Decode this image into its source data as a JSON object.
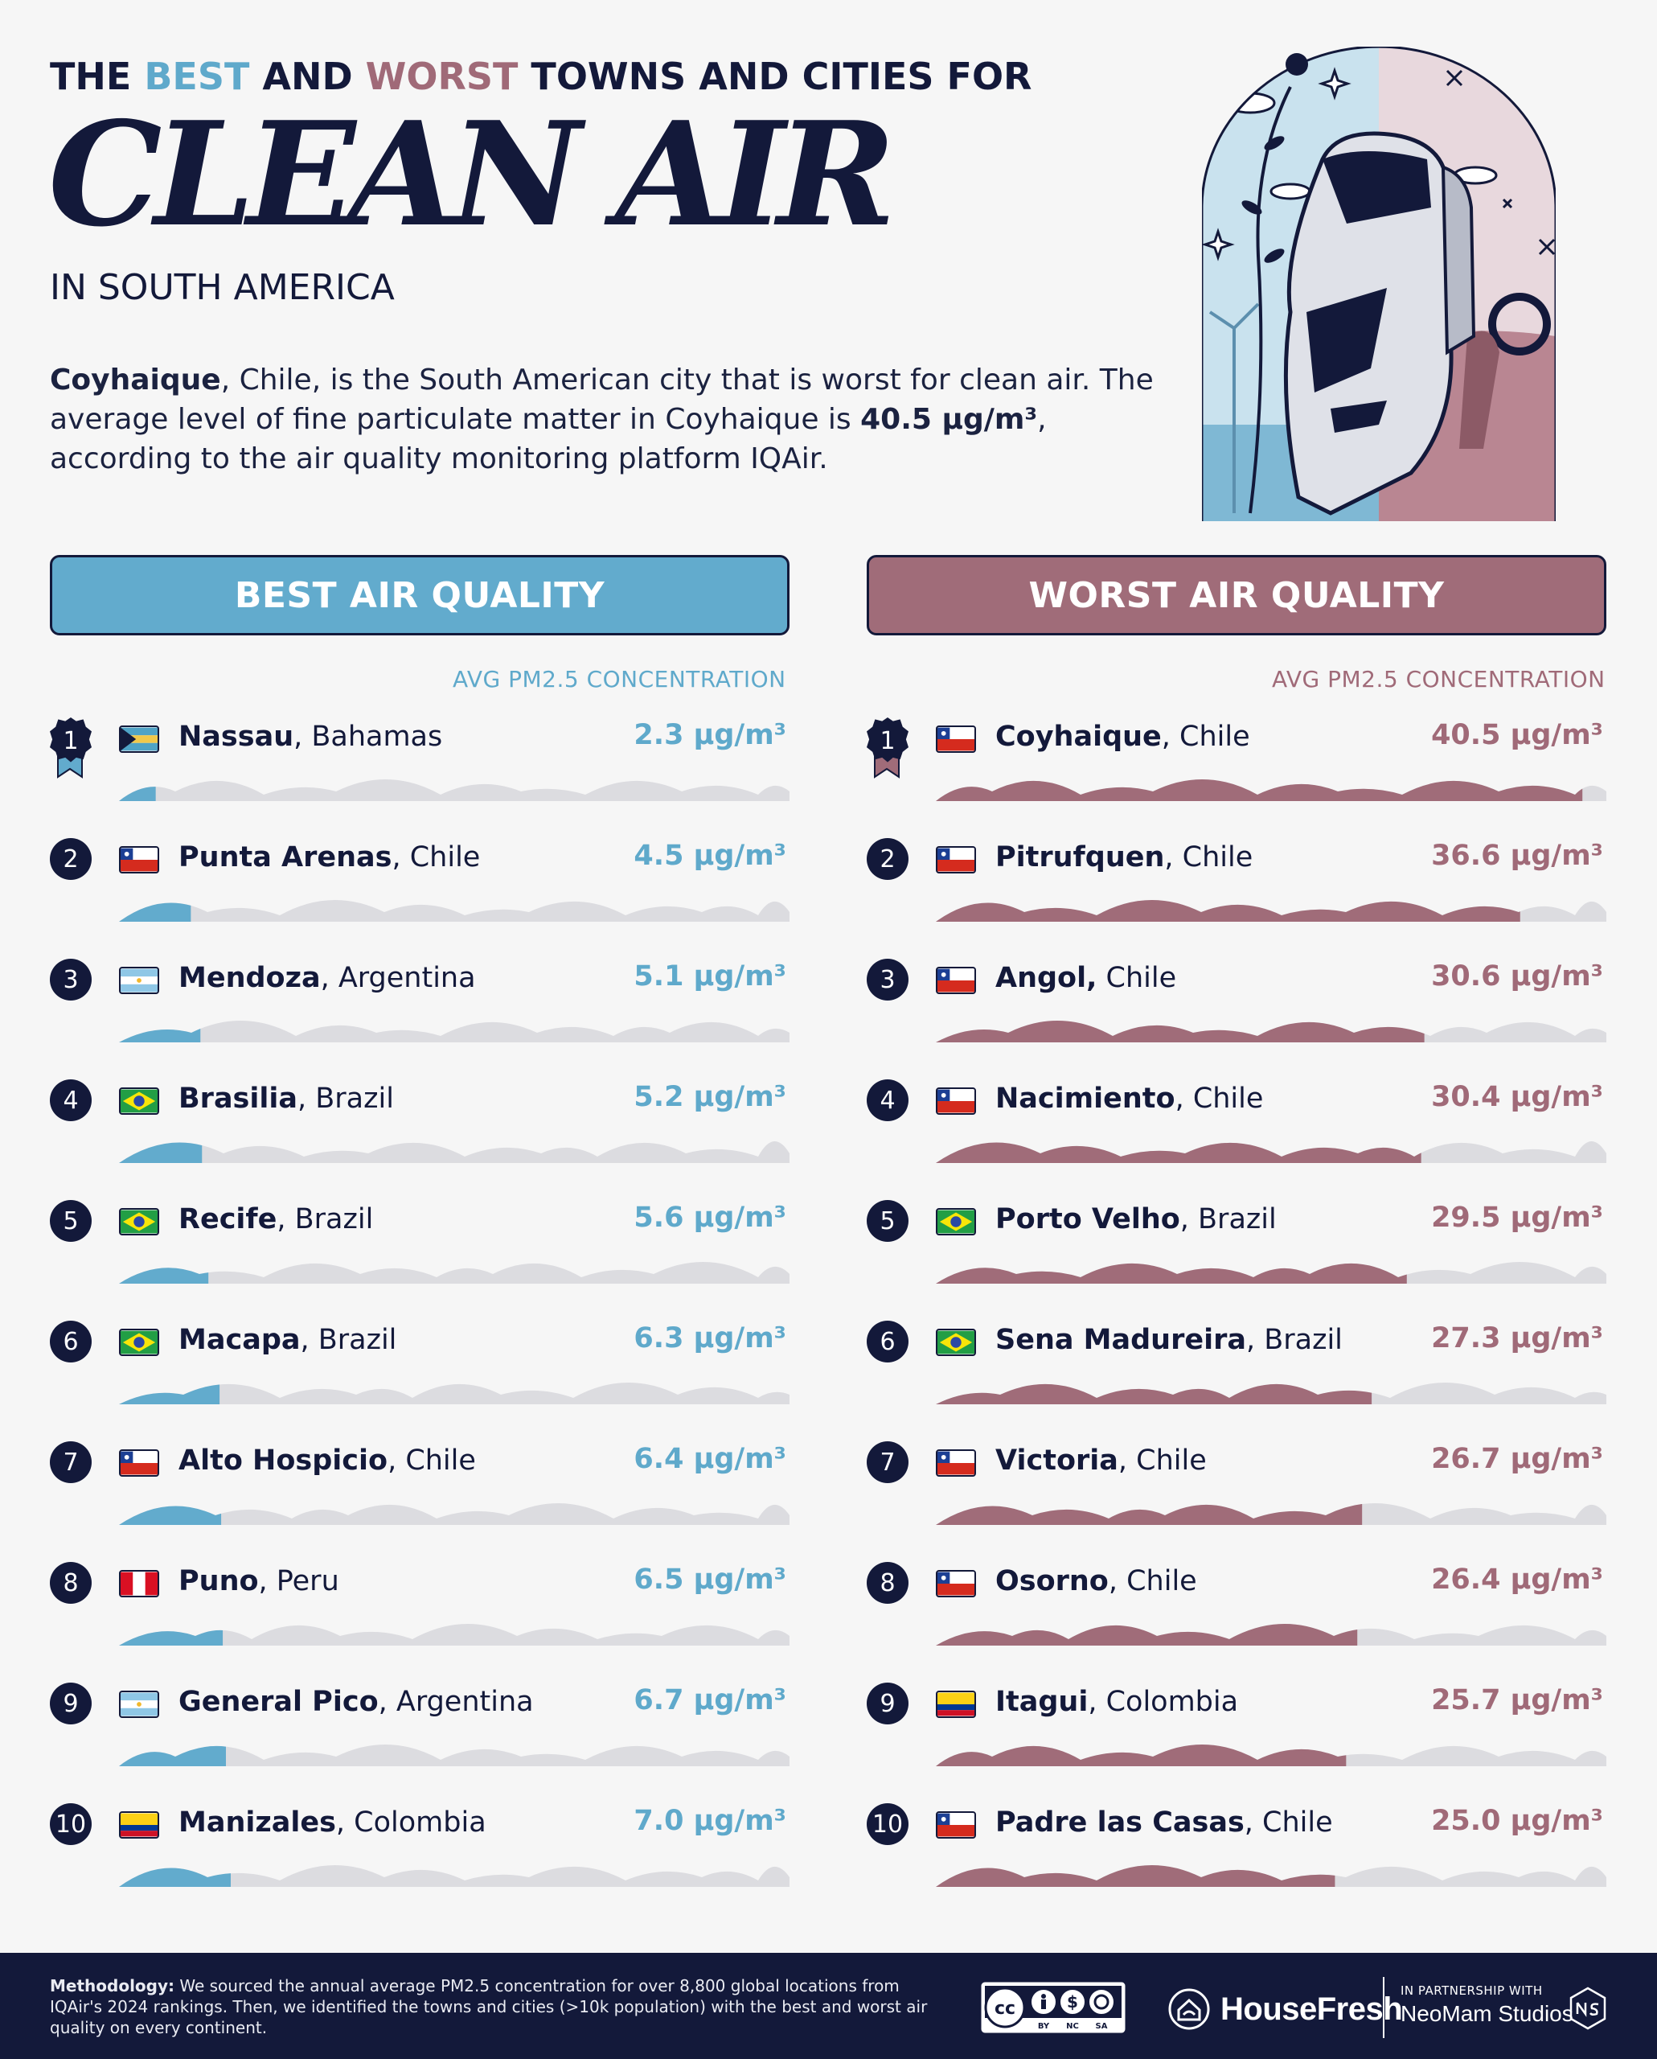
{
  "header": {
    "line1_pre": "THE ",
    "line1_best": "BEST",
    "line1_mid": " AND ",
    "line1_worst": "WORST",
    "line1_post": " TOWNS AND CITIES FOR",
    "big_title": "CLEAN AIR",
    "subtitle": "IN SOUTH AMERICA"
  },
  "intro": {
    "city": "Coyhaique",
    "part1": ", Chile, is the South American city that is worst for clean air. The average level of fine particulate matter in Coyhaique is ",
    "value": "40.5 μg/m³",
    "part2": ", according to the air quality monitoring platform IQAir."
  },
  "panels": {
    "best_title": "BEST AIR QUALITY",
    "worst_title": "WORST AIR QUALITY",
    "column_label": "AVG PM2.5 CONCENTRATION"
  },
  "colors": {
    "best": "#62abcd",
    "worst": "#a06c79",
    "track": "#dcdce0",
    "navy": "#13193a"
  },
  "chart_data": [
    {
      "type": "bar",
      "title": "BEST AIR QUALITY",
      "ylabel": "AVG PM2.5 CONCENTRATION",
      "unit": "μg/m³",
      "ylim": [
        0,
        42
      ],
      "categories": [
        "Nassau",
        "Punta Arenas",
        "Mendoza",
        "Brasilia",
        "Recife",
        "Macapa",
        "Alto Hospicio",
        "Puno",
        "General Pico",
        "Manizales"
      ],
      "rows": [
        {
          "rank": "1",
          "city": "Nassau",
          "country": ", Bahamas",
          "flag": "bahamas",
          "value": 2.3,
          "label": "2.3 μg/m³"
        },
        {
          "rank": "2",
          "city": "Punta Arenas",
          "country": ", Chile",
          "flag": "chile",
          "value": 4.5,
          "label": "4.5 μg/m³"
        },
        {
          "rank": "3",
          "city": "Mendoza",
          "country": ", Argentina",
          "flag": "argentina",
          "value": 5.1,
          "label": "5.1 μg/m³"
        },
        {
          "rank": "4",
          "city": "Brasilia",
          "country": ", Brazil",
          "flag": "brazil",
          "value": 5.2,
          "label": "5.2 μg/m³"
        },
        {
          "rank": "5",
          "city": "Recife",
          "country": ", Brazil",
          "flag": "brazil",
          "value": 5.6,
          "label": "5.6 μg/m³"
        },
        {
          "rank": "6",
          "city": "Macapa",
          "country": ", Brazil",
          "flag": "brazil",
          "value": 6.3,
          "label": "6.3 μg/m³"
        },
        {
          "rank": "7",
          "city": "Alto Hospicio",
          "country": ", Chile",
          "flag": "chile",
          "value": 6.4,
          "label": "6.4 μg/m³"
        },
        {
          "rank": "8",
          "city": "Puno",
          "country": ", Peru",
          "flag": "peru",
          "value": 6.5,
          "label": "6.5 μg/m³"
        },
        {
          "rank": "9",
          "city": "General Pico",
          "country": ", Argentina",
          "flag": "argentina",
          "value": 6.7,
          "label": "6.7 μg/m³"
        },
        {
          "rank": "10",
          "city": "Manizales",
          "country": ", Colombia",
          "flag": "colombia",
          "value": 7.0,
          "label": "7.0 μg/m³"
        }
      ]
    },
    {
      "type": "bar",
      "title": "WORST AIR QUALITY",
      "ylabel": "AVG PM2.5 CONCENTRATION",
      "unit": "μg/m³",
      "ylim": [
        0,
        42
      ],
      "categories": [
        "Coyhaique",
        "Pitrufquen",
        "Angol",
        "Nacimiento",
        "Porto Velho",
        "Sena Madureira",
        "Victoria",
        "Osorno",
        "Itagui",
        "Padre las Casas"
      ],
      "rows": [
        {
          "rank": "1",
          "city": "Coyhaique",
          "country": ", Chile",
          "flag": "chile",
          "value": 40.5,
          "label": "40.5 μg/m³"
        },
        {
          "rank": "2",
          "city": "Pitrufquen",
          "country": ", Chile",
          "flag": "chile",
          "value": 36.6,
          "label": "36.6 μg/m³"
        },
        {
          "rank": "3",
          "city": "Angol,",
          "country": " Chile",
          "flag": "chile",
          "value": 30.6,
          "label": "30.6 μg/m³"
        },
        {
          "rank": "4",
          "city": "Nacimiento",
          "country": ", Chile",
          "flag": "chile",
          "value": 30.4,
          "label": "30.4 μg/m³"
        },
        {
          "rank": "5",
          "city": "Porto Velho",
          "country": ", Brazil",
          "flag": "brazil",
          "value": 29.5,
          "label": "29.5 μg/m³"
        },
        {
          "rank": "6",
          "city": "Sena Madureira",
          "country": ", Brazil",
          "flag": "brazil",
          "value": 27.3,
          "label": "27.3 μg/m³"
        },
        {
          "rank": "7",
          "city": "Victoria",
          "country": ", Chile",
          "flag": "chile",
          "value": 26.7,
          "label": "26.7 μg/m³"
        },
        {
          "rank": "8",
          "city": "Osorno",
          "country": ", Chile",
          "flag": "chile",
          "value": 26.4,
          "label": "26.4 μg/m³"
        },
        {
          "rank": "9",
          "city": "Itagui",
          "country": ", Colombia",
          "flag": "colombia",
          "value": 25.7,
          "label": "25.7 μg/m³"
        },
        {
          "rank": "10",
          "city": "Padre las Casas",
          "country": ", Chile",
          "flag": "chile",
          "value": 25.0,
          "label": "25.0 μg/m³"
        }
      ]
    }
  ],
  "footer": {
    "method_label": "Methodology:",
    "method_text": " We sourced the annual average PM2.5 concentration for over 8,800 global locations from IQAir's 2024 rankings. Then, we identified the towns and cities (>10k population) with the best and worst air quality on every continent.",
    "cc_by": "BY",
    "cc_nc": "NC",
    "cc_sa": "SA",
    "brand": "HouseFresh",
    "partner_small": "IN PARTNERSHIP WITH",
    "partner_name": "NeoMam Studios"
  }
}
